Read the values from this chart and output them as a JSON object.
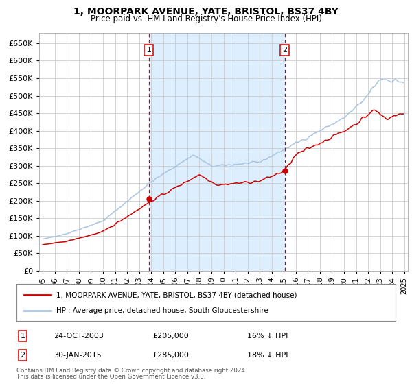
{
  "title": "1, MOORPARK AVENUE, YATE, BRISTOL, BS37 4BY",
  "subtitle": "Price paid vs. HM Land Registry's House Price Index (HPI)",
  "legend_line1": "1, MOORPARK AVENUE, YATE, BRISTOL, BS37 4BY (detached house)",
  "legend_line2": "HPI: Average price, detached house, South Gloucestershire",
  "sale1_date": "24-OCT-2003",
  "sale1_price": 205000,
  "sale1_label": "16% ↓ HPI",
  "sale2_date": "30-JAN-2015",
  "sale2_price": 285000,
  "sale2_label": "18% ↓ HPI",
  "sale1_x": 2003.81,
  "sale2_x": 2015.08,
  "footnote1": "Contains HM Land Registry data © Crown copyright and database right 2024.",
  "footnote2": "This data is licensed under the Open Government Licence v3.0.",
  "hpi_color": "#a8c4e0",
  "price_color": "#cc0000",
  "span_color": "#ddeeff",
  "plot_bg": "#ffffff",
  "ylim": [
    0,
    680000
  ],
  "yticks": [
    0,
    50000,
    100000,
    150000,
    200000,
    250000,
    300000,
    350000,
    400000,
    450000,
    500000,
    550000,
    600000,
    650000
  ],
  "xlim": [
    1994.7,
    2025.3
  ]
}
